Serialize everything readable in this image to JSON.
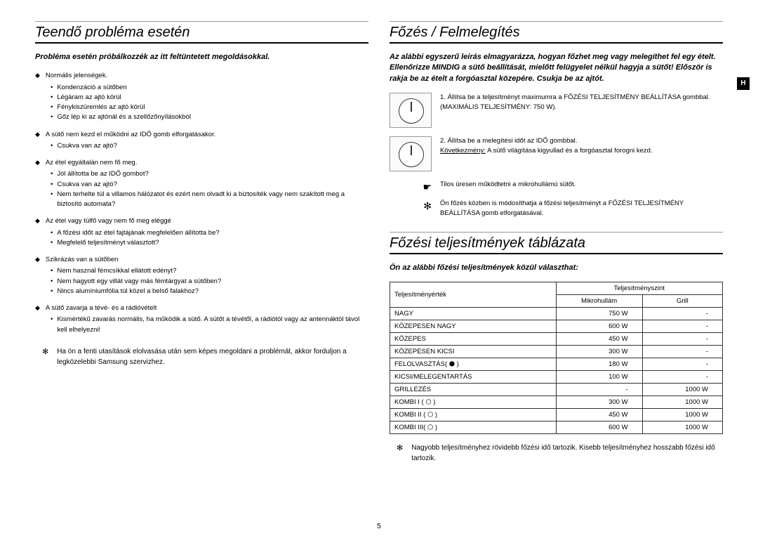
{
  "page_number": "5",
  "tab_letter": "H",
  "left": {
    "title": "Teendő probléma esetén",
    "intro": "Probléma esetén próbálkozzék az itt feltüntetett megoldásokkal.",
    "sections": [
      {
        "main": "Normális jelenségek.",
        "subs": [
          "Kondenzáció a sütőben",
          "Légáram az ajtó körül",
          "Fénykiszüremlés az ajtó körül",
          "Gőz lép ki az ajtónál és a szellőzőnyílásokból"
        ]
      },
      {
        "main": "A sütő nem kezd el működni az IDŐ gomb elforgatásakor.",
        "subs": [
          "Csukva van az ajtó?"
        ]
      },
      {
        "main": "Az étel egyáltalán nem fő meg.",
        "subs": [
          "Jól állította be az IDŐ gombot?",
          "Csukva van az ajtó?",
          "Nem terhelte túl a villamos hálózatot és ezért nem olvadt ki a biztosíték vagy nem szakított meg a biztosító automata?"
        ]
      },
      {
        "main": "Az étel vagy túlfő vagy nem fő meg eléggé",
        "subs": [
          "A főzési időt az étel fajtájának megfelelően állította be?",
          "Megfelelő teljesítményt választott?"
        ]
      },
      {
        "main": "Szikrázás van a sütőben",
        "subs": [
          "Nem használ fémcsíkkal ellátott edényt?",
          "Nem hagyott egy villát vagy más fémtárgyat a sütőben?",
          "Nincs alumíniumfólia túl közel a belső falakhoz?"
        ]
      },
      {
        "main": "A sütő zavarja a tévé- és a rádióvételt",
        "subs": [
          "Kismértékű zavarás normális, ha működik a sütő. A sütőt a tévétől, a rádiótól vagy az antennáktól távol kell elhelyezni!"
        ]
      }
    ],
    "note": "Ha ön a fenti utasítások elolvasása után sem képes megoldani a problémát, akkor forduljon a legközelebbi Samsung szervizhez."
  },
  "right_top": {
    "title": "Főzés / Felmelegítés",
    "intro": "Az alábbi egyszerű leírás elmagyarázza, hogyan főzhet meg vagy melegíthet fel egy ételt. Ellenőrizze MINDIG a sütő beállítását, mielőtt felügyelet nélkül hagyja a sütőt! Először is rakja be az ételt a forgóasztal közepére. Csukja be az ajtót.",
    "steps": [
      {
        "num": "1.",
        "text": "Állítsa be a teljesítményt maximumra a FŐZÉSI TELJESÍTMÉNY BEÁLLÍTÁSA gombbal. (MAXIMÁLIS TELJESÍTMÉNY: 750 W)."
      },
      {
        "num": "2.",
        "text_pre": "Állítsa be a melegítési időt az IDŐ gombbal.",
        "underline": "Következmény:",
        "text_post": "A sütő világítása kigyullad és a forgóasztal forogni kezd."
      }
    ],
    "pointer1": "Tilos üresen működtetni a mikrohullámú sütőt.",
    "pointer2": "Ön főzés közben is módosíthatja a főzési teljesítményt a FŐZÉSI TELJESÍTMÉNY BEÁLLÍTÁSA gomb elforgatásával."
  },
  "right_bottom": {
    "title": "Főzési teljesítmények táblázata",
    "intro": "Ön az alábbi főzési teljesítmények közül választhat:",
    "table": {
      "header_main": "Teljesítményszint",
      "header_col0": "Teljesítményérték",
      "header_col1": "Mikrohullám",
      "header_col2": "Grill",
      "rows": [
        {
          "name": "NAGY",
          "mw": "750 W",
          "grill": "-"
        },
        {
          "name": "KÖZEPESEN NAGY",
          "mw": "600 W",
          "grill": "-"
        },
        {
          "name": "KÖZEPES",
          "mw": "450 W",
          "grill": "-"
        },
        {
          "name": "KÖZEPESEN KICSI",
          "mw": "300 W",
          "grill": "-"
        },
        {
          "name": "FELOLVASZTÁS( ⬢ )",
          "mw": "180 W",
          "grill": "-"
        },
        {
          "name": "KICSI/MELEGENTARTÁS",
          "mw": "100 W",
          "grill": "-"
        },
        {
          "name": "GRILLEZÉS",
          "mw": "-",
          "grill": "1000 W"
        },
        {
          "name": "KOMBI I  ( ⬡ )",
          "mw": "300 W",
          "grill": "1000 W"
        },
        {
          "name": "KOMBI II ( ⬡ )",
          "mw": "450 W",
          "grill": "1000 W"
        },
        {
          "name": "KOMBI III( ⬡ )",
          "mw": "600 W",
          "grill": "1000 W"
        }
      ]
    },
    "note": "Nagyobb teljesítményhez rövidebb főzési idő tartozik. Kisebb teljesítményhez hosszabb főzési idő tartozik."
  }
}
